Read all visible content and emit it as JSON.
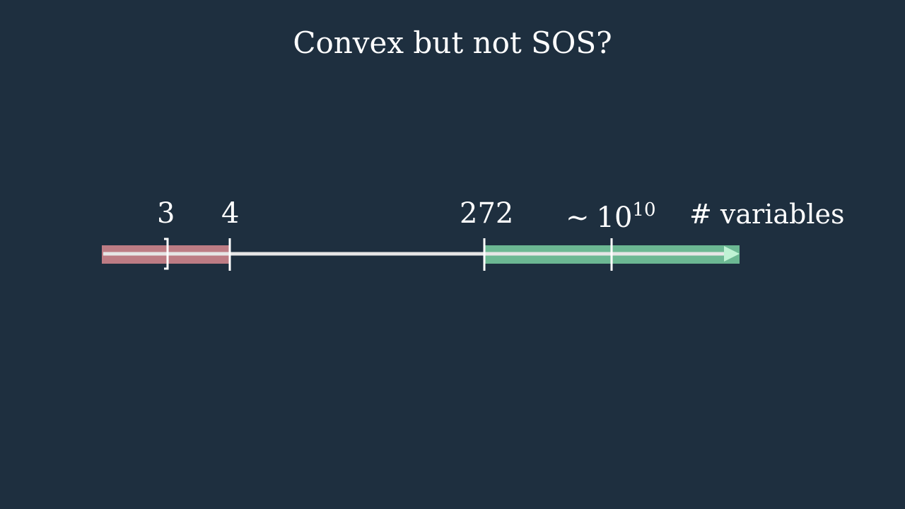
{
  "title": "Convex but not SOS?",
  "axis_label": "# variables",
  "ticks": [
    {
      "label": "3"
    },
    {
      "label": "4"
    },
    {
      "label": "272"
    }
  ],
  "approx_tick": {
    "prefix": "∼",
    "base": "10",
    "exponent": "10"
  },
  "colors": {
    "background": "#1e2f3f",
    "red_region": "#d98a90",
    "green_region": "#7ad0a2",
    "line": "#e6e6e6"
  }
}
